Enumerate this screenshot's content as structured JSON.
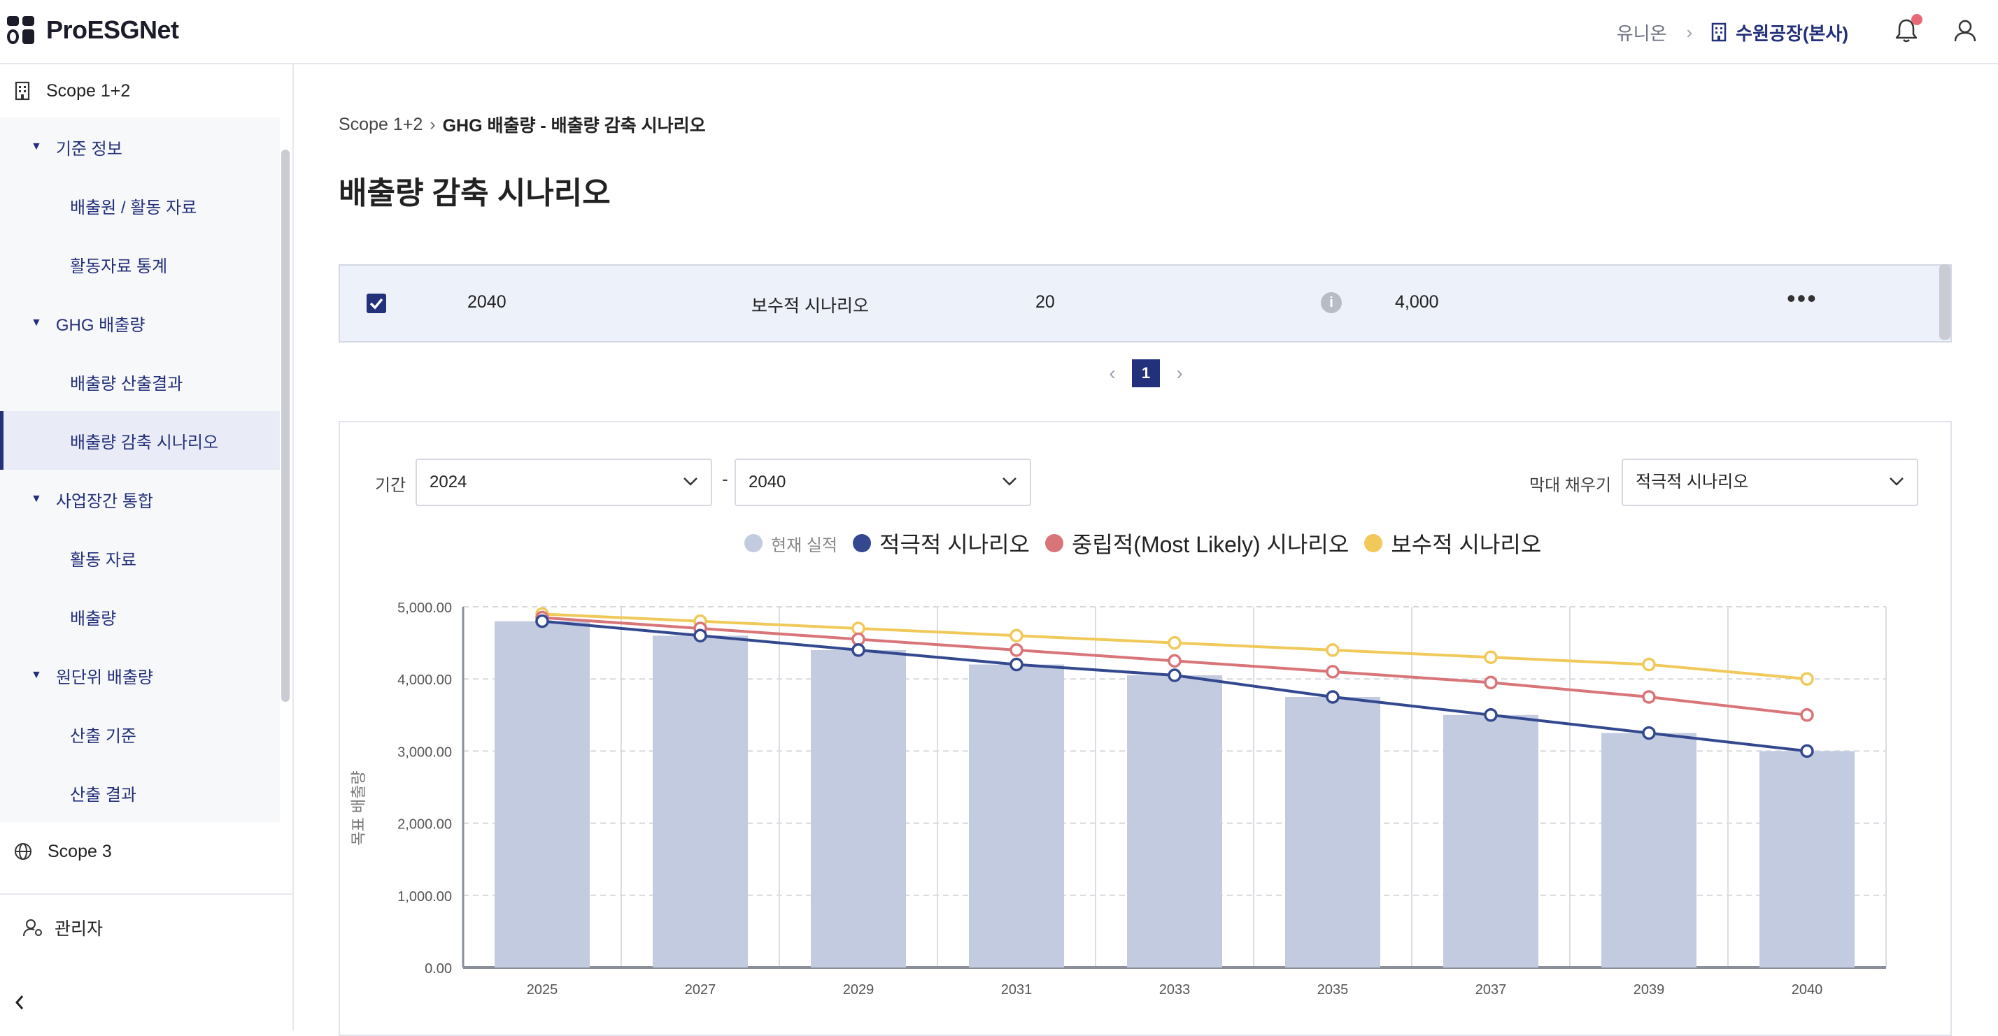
{
  "header": {
    "app_name": "ProESGNet",
    "company": "유니온",
    "site": "수원공장(본사)",
    "icons": [
      "logo-grid-icon",
      "building-icon",
      "bell-icon",
      "user-icon"
    ]
  },
  "sidebar": {
    "scope12": "Scope 1+2",
    "groups": [
      {
        "label": "기준 정보",
        "items": [
          "배출원 / 활동 자료",
          "활동자료 통계"
        ]
      },
      {
        "label": "GHG 배출량",
        "items": [
          "배출량 산출결과",
          "배출량 감축 시나리오"
        ]
      },
      {
        "label": "사업장간 통합",
        "items": [
          "활동 자료",
          "배출량"
        ]
      },
      {
        "label": "원단위 배출량",
        "items": [
          "산출 기준",
          "산출 결과"
        ]
      }
    ],
    "active_item": "배출량 감축 시나리오",
    "scope3": "Scope 3",
    "admin": "관리자"
  },
  "breadcrumb": {
    "root": "Scope 1+2",
    "current": "GHG 배출량 - 배출량 감축 시나리오"
  },
  "page_title": "배출량 감축 시나리오",
  "table_row": {
    "checked": true,
    "year": "2040",
    "scenario": "보수적 시나리오",
    "value": "20",
    "amount": "4,000"
  },
  "pagination": {
    "current": "1"
  },
  "filters": {
    "period_label": "기간",
    "from": "2024",
    "to": "2040",
    "dash": "-",
    "fill_label": "막대 채우기",
    "fill_value": "적극적 시나리오"
  },
  "colors": {
    "primary": "#23307a",
    "bar": "#c3cbe0",
    "aggressive": "#33488f",
    "neutral": "#d97478",
    "conservative": "#f0c95a"
  },
  "chart_data": {
    "type": "line",
    "ylabel": "목표 배출량",
    "ylim": [
      0,
      5000
    ],
    "yticks": [
      "0.00",
      "1,000.00",
      "2,000.00",
      "3,000.00",
      "4,000.00",
      "5,000.00"
    ],
    "categories": [
      "2025",
      "2027",
      "2029",
      "2031",
      "2033",
      "2035",
      "2037",
      "2039",
      "2040"
    ],
    "legend": [
      "현재 실적",
      "적극적 시나리오",
      "중립적(Most Likely) 시나리오",
      "보수적 시나리오"
    ],
    "bars": {
      "name": "현재 실적",
      "values": [
        4800,
        4600,
        4400,
        4200,
        4050,
        3750,
        3500,
        3250,
        3000
      ]
    },
    "series": [
      {
        "name": "적극적 시나리오",
        "values": [
          4800,
          4600,
          4400,
          4200,
          4050,
          3750,
          3500,
          3250,
          3000
        ]
      },
      {
        "name": "중립적(Most Likely) 시나리오",
        "values": [
          4850,
          4700,
          4550,
          4400,
          4250,
          4100,
          3950,
          3750,
          3500
        ]
      },
      {
        "name": "보수적 시나리오",
        "values": [
          4900,
          4800,
          4700,
          4600,
          4500,
          4400,
          4300,
          4200,
          4000
        ]
      }
    ]
  }
}
